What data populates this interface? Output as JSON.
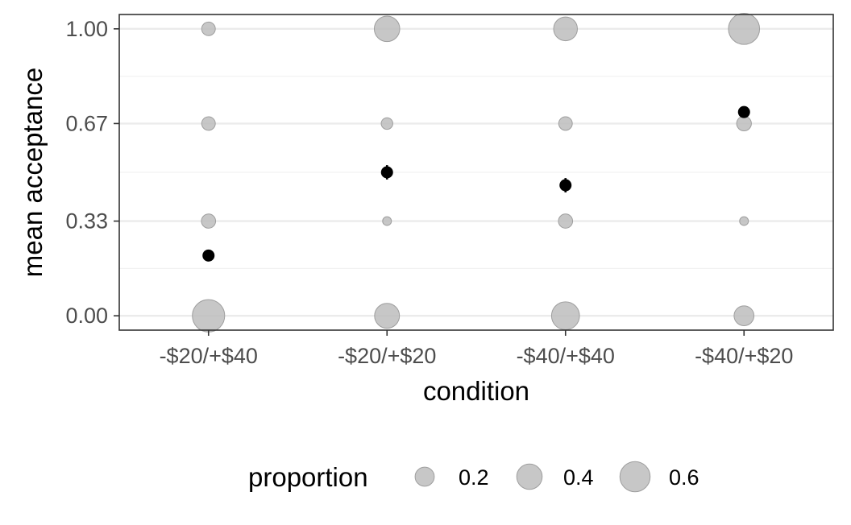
{
  "chart_data": {
    "type": "scatter",
    "xlabel": "condition",
    "ylabel": "mean acceptance",
    "categories": [
      "-$20/+$40",
      "-$20/+$20",
      "-$40/+$40",
      "-$40/+$20"
    ],
    "y_ticks": [
      0.0,
      0.33,
      0.67,
      1.0
    ],
    "y_tick_labels": [
      "0.00",
      "0.33",
      "0.67",
      "1.00"
    ],
    "ylim": [
      -0.05,
      1.05
    ],
    "grid": true,
    "legend_position": "bottom",
    "legend": {
      "title": "proportion",
      "entries": [
        {
          "value": 0.2,
          "label": "0.2"
        },
        {
          "value": 0.4,
          "label": "0.4"
        },
        {
          "value": 0.6,
          "label": "0.6"
        }
      ]
    },
    "proportion_points": [
      {
        "category": "-$20/+$40",
        "y": 1.0,
        "proportion": 0.08
      },
      {
        "category": "-$20/+$40",
        "y": 0.67,
        "proportion": 0.08
      },
      {
        "category": "-$20/+$40",
        "y": 0.33,
        "proportion": 0.09
      },
      {
        "category": "-$20/+$40",
        "y": 0.0,
        "proportion": 0.7
      },
      {
        "category": "-$20/+$20",
        "y": 1.0,
        "proportion": 0.4
      },
      {
        "category": "-$20/+$20",
        "y": 0.67,
        "proportion": 0.05
      },
      {
        "category": "-$20/+$20",
        "y": 0.33,
        "proportion": 0.02
      },
      {
        "category": "-$20/+$20",
        "y": 0.0,
        "proportion": 0.38
      },
      {
        "category": "-$40/+$40",
        "y": 1.0,
        "proportion": 0.34
      },
      {
        "category": "-$40/+$40",
        "y": 0.67,
        "proportion": 0.08
      },
      {
        "category": "-$40/+$40",
        "y": 0.33,
        "proportion": 0.09
      },
      {
        "category": "-$40/+$40",
        "y": 0.0,
        "proportion": 0.5
      },
      {
        "category": "-$40/+$20",
        "y": 1.0,
        "proportion": 0.64
      },
      {
        "category": "-$40/+$20",
        "y": 0.67,
        "proportion": 0.1
      },
      {
        "category": "-$40/+$20",
        "y": 0.33,
        "proportion": 0.02
      },
      {
        "category": "-$40/+$20",
        "y": 0.0,
        "proportion": 0.22
      }
    ],
    "series": [
      {
        "values": [
          0.21,
          0.5,
          0.455,
          0.71
        ],
        "error_low": [
          0.2,
          0.475,
          0.43,
          0.695
        ],
        "error_high": [
          0.22,
          0.525,
          0.48,
          0.725
        ]
      }
    ],
    "colors": {
      "proportion_fill": "#bdbdbd",
      "proportion_stroke": "#9e9e9e",
      "mean_point": "#000000",
      "grid_major": "#ebebeb",
      "grid_minor": "#f2f2f2",
      "panel_border": "#333333",
      "tick_text": "#4d4d4d"
    }
  }
}
